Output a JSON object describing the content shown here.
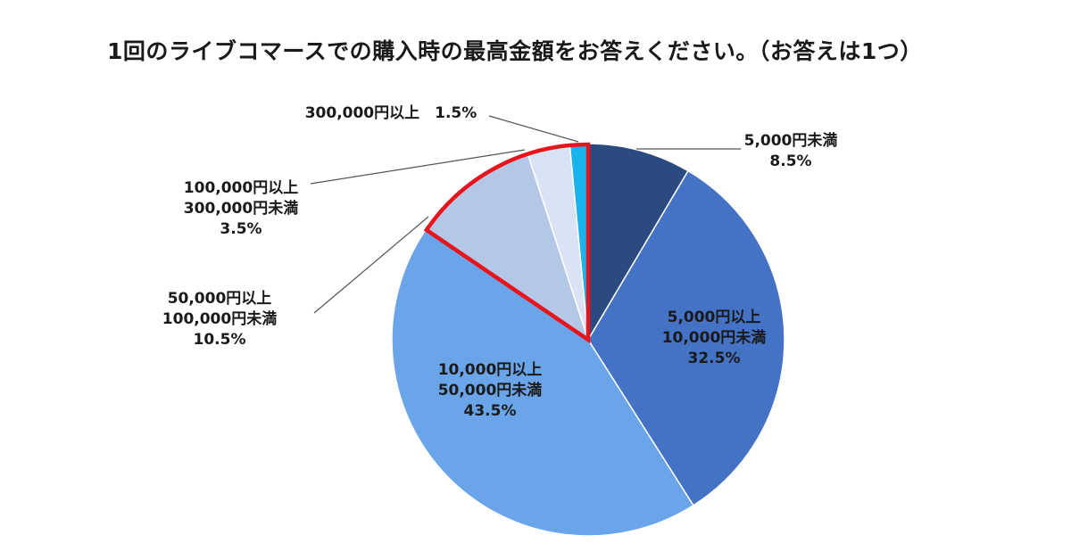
{
  "chart_data": {
    "type": "pie",
    "title": "1回のライブコマースでの購入時の最高金額をお答えください。（お答えは1つ）",
    "slices": [
      {
        "lines": [
          "5,000円未満",
          "8.5%"
        ],
        "value": 8.5,
        "color": "#2b4a80"
      },
      {
        "lines": [
          "5,000円以上",
          "10,000円未満",
          "32.5%"
        ],
        "value": 32.5,
        "color": "#4472c4"
      },
      {
        "lines": [
          "10,000円以上",
          "50,000円未満",
          "43.5%"
        ],
        "value": 43.5,
        "color": "#6aa5ea"
      },
      {
        "lines": [
          "50,000円以上",
          "100,000円未満",
          "10.5%"
        ],
        "value": 10.5,
        "color": "#b4c7e7"
      },
      {
        "lines": [
          "100,000円以上",
          "300,000円未満",
          "3.5%"
        ],
        "value": 3.5,
        "color": "#dae3f3"
      },
      {
        "lines": [
          "300,000円以上　1.5%"
        ],
        "value": 1.5,
        "color": "#19b4ee"
      }
    ],
    "highlight": {
      "from_slice": 3,
      "to_slice": 5,
      "color": "#e8141b"
    }
  }
}
